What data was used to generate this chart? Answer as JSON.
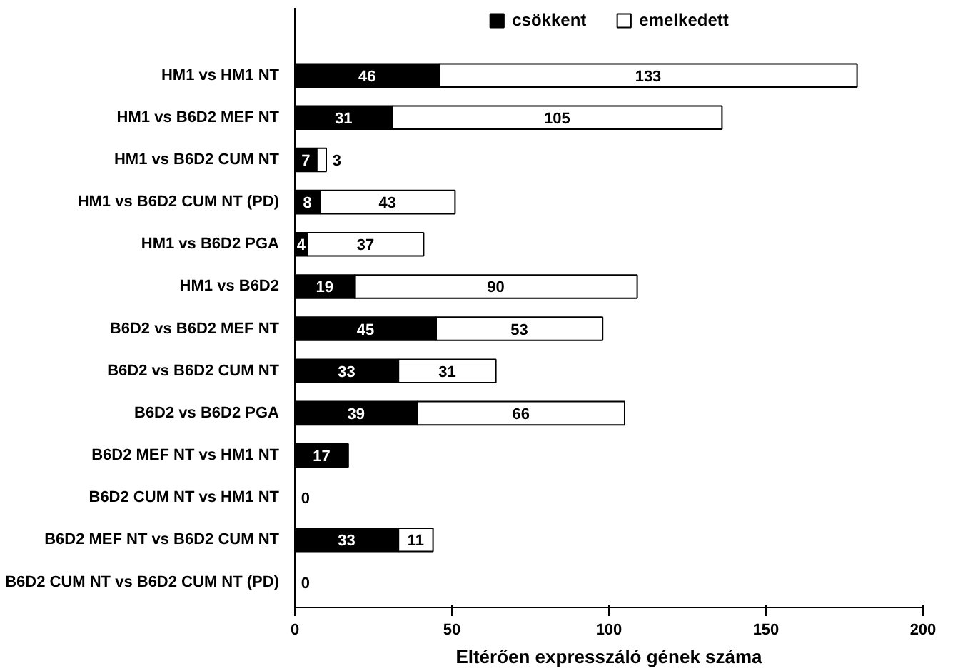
{
  "chart_data": {
    "type": "bar",
    "orientation": "horizontal",
    "stacked": true,
    "xlabel": "Eltérően expresszáló gének száma",
    "categories": [
      "HM1 vs HM1 NT",
      "HM1 vs B6D2 MEF NT",
      "HM1 vs B6D2 CUM NT",
      "HM1 vs B6D2 CUM NT (PD)",
      "HM1 vs B6D2 PGA",
      "HM1 vs B6D2",
      "B6D2 vs B6D2 MEF NT",
      "B6D2 vs B6D2 CUM NT",
      "B6D2 vs B6D2 PGA",
      "B6D2 MEF NT vs HM1 NT",
      "B6D2 CUM NT vs HM1 NT",
      "B6D2 MEF NT vs B6D2 CUM NT",
      "B6D2 CUM NT vs B6D2 CUM NT (PD)"
    ],
    "series": [
      {
        "name": "csökkent",
        "color": "#000000",
        "values": [
          46,
          31,
          7,
          8,
          4,
          19,
          45,
          33,
          39,
          17,
          0,
          33,
          0
        ],
        "value_labels": [
          "46",
          "31",
          "7",
          "8",
          "4",
          "19",
          "45",
          "33",
          "39",
          "17",
          "0",
          "33",
          "0"
        ]
      },
      {
        "name": "emelkedett",
        "color": "#ffffff",
        "values": [
          133,
          105,
          3,
          43,
          37,
          90,
          53,
          31,
          66,
          0,
          0,
          11,
          0
        ],
        "value_labels": [
          "133",
          "105",
          "3",
          "43",
          "37",
          "90",
          "53",
          "31",
          "66",
          null,
          null,
          "11",
          null
        ]
      }
    ],
    "xlim": [
      0,
      200
    ],
    "xticks": [
      0,
      50,
      100,
      150,
      200
    ],
    "grid": false,
    "legend": "top"
  }
}
